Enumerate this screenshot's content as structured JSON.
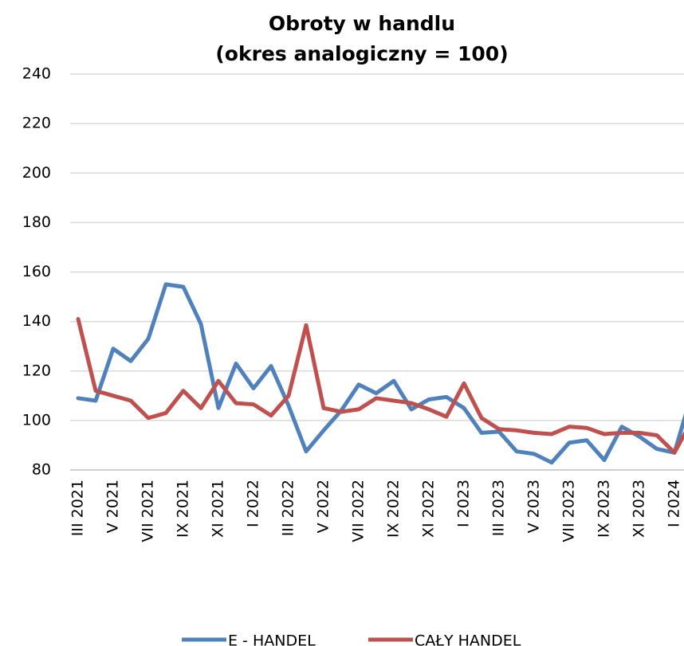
{
  "chart_data": {
    "type": "line",
    "title": [
      "Obroty w handlu",
      "(okres analogiczny = 100)"
    ],
    "categories": [
      "III 2021",
      null,
      "V 2021",
      null,
      "VII 2021",
      null,
      "IX 2021",
      null,
      "XI 2021",
      null,
      "I 2022",
      null,
      "III 2022",
      null,
      "V 2022",
      null,
      "VII 2022",
      null,
      "IX 2022",
      null,
      "XI 2022",
      null,
      "I 2023",
      null,
      "III 2023",
      null,
      "V 2023",
      null,
      "VII 2023",
      null,
      "IX 2023",
      null,
      "XI 2023",
      null,
      "I 2024",
      null
    ],
    "series": [
      {
        "name": "E - HANDEL",
        "color": "#4f81bd",
        "values": [
          109,
          108,
          129,
          124,
          133,
          155,
          154,
          139,
          105,
          123,
          113,
          122,
          106,
          87.5,
          96,
          104,
          114.5,
          111,
          116,
          104.5,
          108.5,
          109.5,
          105,
          95,
          95.5,
          87.5,
          86.5,
          83,
          91,
          92,
          84,
          97.5,
          93.5,
          88.5,
          87,
          111
        ]
      },
      {
        "name": "CAŁY HANDEL",
        "color": "#c0504d",
        "values": [
          141,
          112,
          110,
          108,
          101,
          103,
          112,
          105,
          116,
          107,
          106.5,
          102,
          110,
          138.5,
          105,
          103.5,
          104.5,
          109,
          108,
          107,
          104.5,
          101.5,
          115,
          101,
          96.5,
          96,
          95,
          94.5,
          97.5,
          97,
          94.5,
          95,
          95,
          94,
          87,
          100
        ]
      }
    ],
    "ylim": [
      80,
      240
    ],
    "yticks": [
      80,
      100,
      120,
      140,
      160,
      180,
      200,
      220,
      240
    ],
    "grid": true,
    "legend": "bottom"
  }
}
